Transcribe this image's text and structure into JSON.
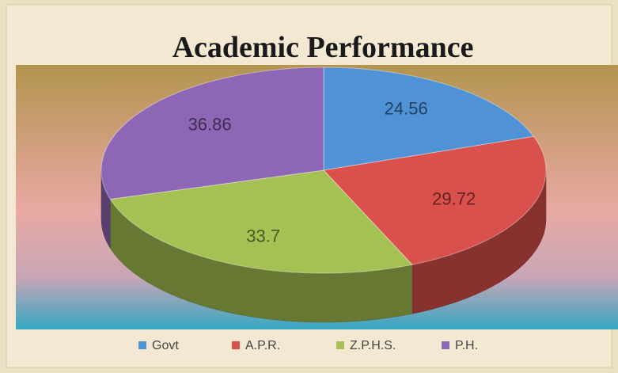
{
  "chart_data": {
    "type": "pie",
    "title": "Academic Performance",
    "categories": [
      "Govt",
      "A.P.R.",
      "Z.P.H.S.",
      "P.H."
    ],
    "values": [
      24.56,
      29.72,
      33.7,
      36.86
    ],
    "colors": [
      "#4f93d6",
      "#d9504c",
      "#a6c153",
      "#8d67b5"
    ],
    "legend": "bottom"
  }
}
